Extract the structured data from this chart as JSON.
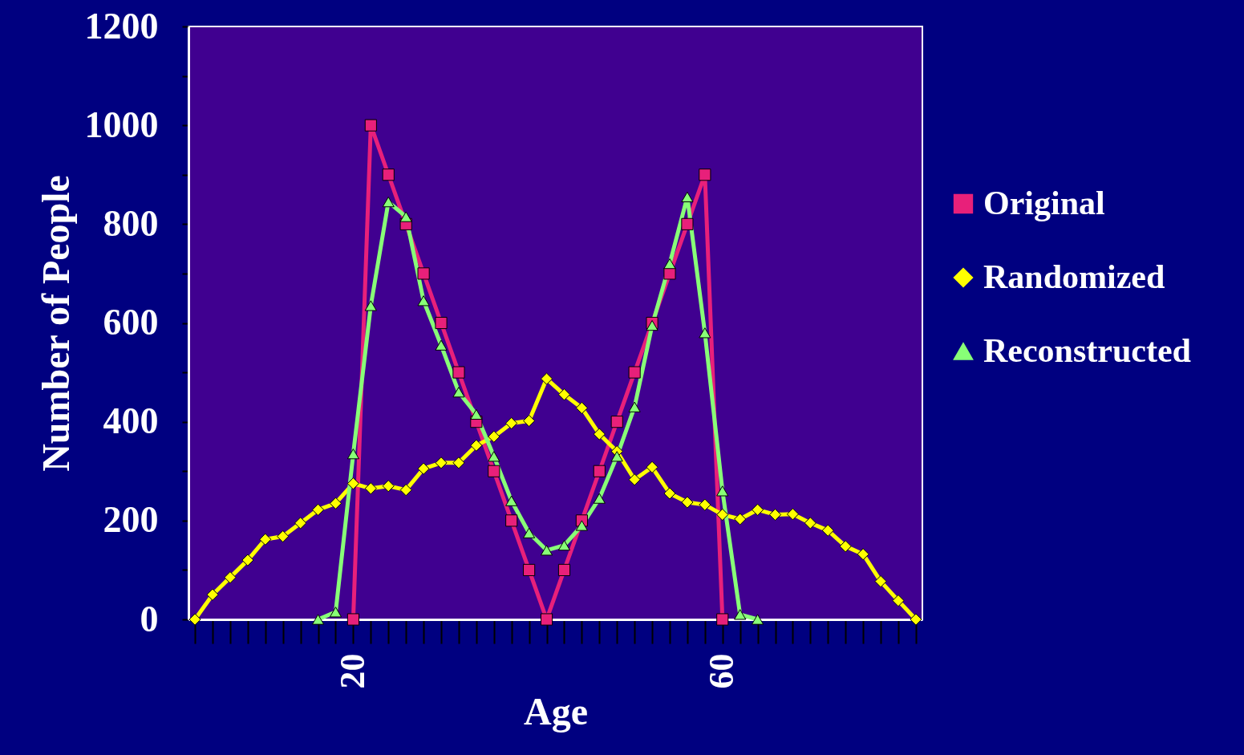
{
  "chart_data": {
    "type": "line",
    "xlabel": "Age",
    "ylabel": "Number of People",
    "categories": [
      null,
      null,
      null,
      null,
      null,
      null,
      null,
      null,
      null,
      "20",
      null,
      null,
      null,
      null,
      null,
      null,
      null,
      null,
      null,
      null,
      null,
      null,
      null,
      null,
      null,
      null,
      null,
      null,
      null,
      null,
      "60",
      null,
      null,
      null,
      null,
      null,
      null,
      null,
      null,
      null,
      null,
      null
    ],
    "series": [
      {
        "name": "Original",
        "color": "#e8207a",
        "marker": "square",
        "values": [
          null,
          null,
          null,
          null,
          null,
          null,
          null,
          null,
          null,
          0,
          1000,
          900,
          800,
          700,
          600,
          500,
          400,
          300,
          200,
          100,
          0,
          100,
          200,
          300,
          400,
          500,
          600,
          700,
          800,
          900,
          0,
          null,
          null,
          null,
          null,
          null,
          null,
          null,
          null,
          null,
          null,
          null
        ]
      },
      {
        "name": "Randomized",
        "color": "#ffff00",
        "marker": "diamond",
        "values": [
          0,
          50,
          85,
          120,
          162,
          168,
          195,
          222,
          235,
          275,
          265,
          270,
          262,
          305,
          317,
          317,
          352,
          370,
          397,
          402,
          487,
          455,
          428,
          375,
          340,
          283,
          308,
          255,
          237,
          232,
          212,
          203,
          222,
          212,
          213,
          195,
          180,
          148,
          132,
          77,
          38,
          0
        ]
      },
      {
        "name": "Reconstructed",
        "color": "#88ff77",
        "marker": "triangle",
        "values": [
          null,
          null,
          null,
          null,
          null,
          null,
          null,
          0,
          15,
          335,
          635,
          845,
          815,
          645,
          555,
          460,
          415,
          330,
          240,
          175,
          140,
          150,
          190,
          245,
          330,
          430,
          595,
          720,
          855,
          580,
          260,
          10,
          0,
          null,
          null,
          null,
          null,
          null,
          null,
          null,
          null,
          null
        ]
      }
    ],
    "ylim": [
      0,
      1200
    ],
    "yticks": [
      0,
      {
        "value": 100,
        "label": null
      },
      200,
      {
        "value": 300,
        "label": null
      },
      400,
      {
        "value": 500,
        "label": null
      },
      600,
      {
        "value": 700,
        "label": null
      },
      800,
      {
        "value": 900,
        "label": null
      },
      1000,
      {
        "value": 1100,
        "label": null
      },
      1200
    ],
    "grid": false,
    "legend": "right"
  }
}
